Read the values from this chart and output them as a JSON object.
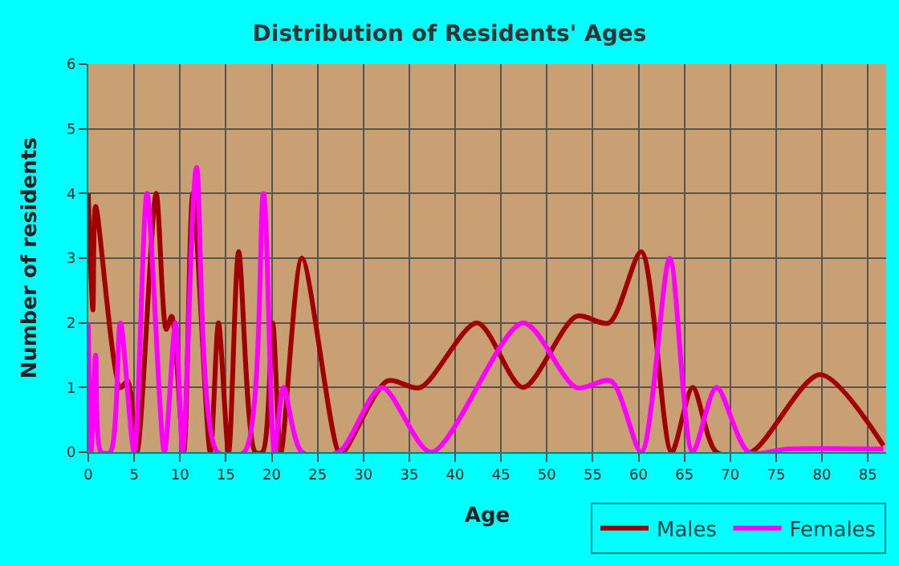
{
  "chart_data": {
    "type": "line",
    "title": "Distribution of Residents' Ages",
    "xlabel": "Age",
    "ylabel": "Number of residents",
    "xlim": [
      0,
      87
    ],
    "xticks": [
      0,
      5,
      10,
      15,
      20,
      25,
      30,
      35,
      40,
      45,
      50,
      55,
      60,
      65,
      70,
      75,
      80,
      85
    ],
    "ylim": [
      0,
      6
    ],
    "yticks": [
      0,
      1,
      2,
      3,
      4,
      5,
      6
    ],
    "grid": true,
    "legend": "bottom right",
    "marker": "none",
    "line_style": "solid",
    "series": [
      {
        "name": "Males",
        "color": "#a00000",
        "x": [
          0,
          0.5,
          0.8,
          3.5,
          4.3,
          5.3,
          7.4,
          8.5,
          9.1,
          10.4,
          11.4,
          13.3,
          14.2,
          15.3,
          16.4,
          18.2,
          19,
          20.1,
          21,
          23.3,
          27.3,
          27.8,
          32.6,
          36.2,
          42.4,
          47.4,
          53.2,
          56.8,
          60.3,
          63.6,
          65.9,
          68.5,
          72.3,
          79.8,
          86.7
        ],
        "values": [
          4,
          2.2,
          3.8,
          1,
          1.1,
          0,
          4,
          1.9,
          2.1,
          0,
          4,
          0,
          2,
          0,
          3.1,
          0,
          0,
          2,
          0,
          3,
          0,
          0,
          1.1,
          1,
          2,
          1,
          2.1,
          2,
          3.1,
          0,
          1,
          0,
          0,
          1.2,
          0.1
        ]
      },
      {
        "name": "Females",
        "color": "#ff00ff",
        "x": [
          0,
          0.3,
          0.8,
          1.4,
          2.4,
          3.5,
          5,
          6.4,
          8.3,
          9.5,
          10.3,
          11.8,
          14.1,
          17,
          19.1,
          20.3,
          21.3,
          23.3,
          27.3,
          32,
          37.4,
          47.4,
          53.2,
          57,
          60.3,
          63.4,
          65.9,
          68.5,
          72,
          76.3,
          86.7
        ],
        "values": [
          2,
          0,
          1.5,
          0,
          0,
          2,
          0,
          4,
          0,
          2,
          0,
          4.4,
          0,
          0,
          4,
          0,
          1,
          0,
          0,
          1,
          0,
          2,
          1,
          1.1,
          0,
          3,
          0,
          1,
          0,
          0.05,
          0.05
        ]
      }
    ]
  }
}
